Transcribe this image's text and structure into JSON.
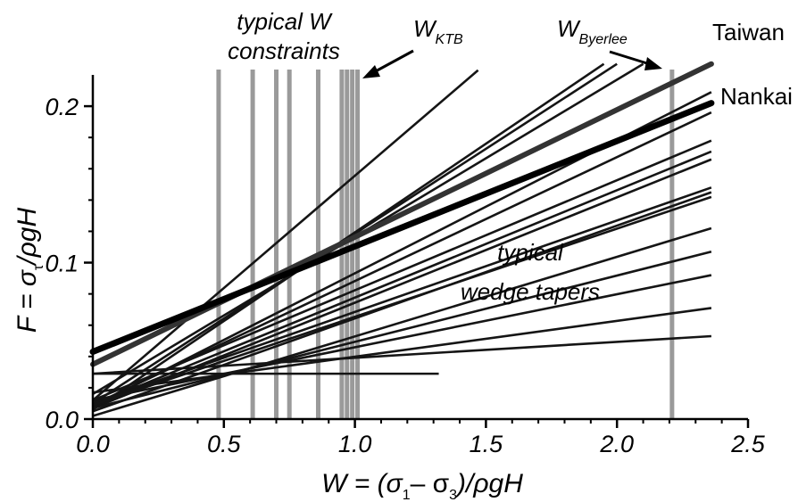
{
  "chart_data": {
    "type": "line",
    "xlim": [
      0,
      2.5
    ],
    "ylim": [
      0,
      0.22
    ],
    "x_ticks": [
      0,
      0.5,
      1,
      1.5,
      2,
      2.5
    ],
    "x_tick_labels": [
      "0.0",
      "0.5",
      "1.0",
      "1.5",
      "2.0",
      "2.5"
    ],
    "y_ticks": [
      0,
      0.1,
      0.2
    ],
    "y_tick_labels": [
      "0.0",
      "0.1",
      "0.2"
    ],
    "xlabel": {
      "prefix": "W = (σ",
      "sub1": "1",
      "mid": "– σ",
      "sub2": "3",
      "suffix": ")/ρgH"
    },
    "ylabel": {
      "prefix": "F = σ",
      "sub": "τ",
      "suffix": "/ρgH"
    },
    "grid": false,
    "constraint_lines": [
      0.48,
      0.61,
      0.7,
      0.75,
      0.86,
      0.95,
      0.97,
      0.99,
      1.01,
      2.21
    ],
    "wedge_lines": [
      [
        0.0,
        0.012,
        1.47,
        0.223
      ],
      [
        0.0,
        0.006,
        1.95,
        0.227
      ],
      [
        0.0,
        0.01,
        2.0,
        0.227
      ],
      [
        0.0,
        0.016,
        2.1,
        0.227
      ],
      [
        0.0,
        0.008,
        2.36,
        0.209
      ],
      [
        0.0,
        0.009,
        2.36,
        0.196
      ],
      [
        0.0,
        0.012,
        2.36,
        0.178
      ],
      [
        0.0,
        0.009,
        2.36,
        0.171
      ],
      [
        0.0,
        0.007,
        2.36,
        0.166
      ],
      [
        0.0,
        0.01,
        2.36,
        0.148
      ],
      [
        0.0,
        0.005,
        2.36,
        0.145
      ],
      [
        0.0,
        0.009,
        2.36,
        0.142
      ],
      [
        0.0,
        0.002,
        2.36,
        0.122
      ],
      [
        0.0,
        0.007,
        2.36,
        0.107
      ],
      [
        0.0,
        0.012,
        2.36,
        0.092
      ],
      [
        0.0,
        0.017,
        2.36,
        0.071
      ],
      [
        0.0,
        0.029,
        2.36,
        0.053
      ],
      [
        0.0,
        0.029,
        1.32,
        0.029
      ]
    ],
    "series": [
      {
        "name": "Taiwan",
        "x": [
          0.0,
          2.36
        ],
        "y": [
          0.035,
          0.227
        ]
      },
      {
        "name": "Nankai",
        "x": [
          0.0,
          2.36
        ],
        "y": [
          0.043,
          0.202
        ]
      }
    ],
    "annotations": {
      "constraints_line1": "typical W",
      "constraints_line2": "constraints",
      "w_ktb": "W",
      "w_ktb_sub": "KTB",
      "w_byerlee": "W",
      "w_byerlee_sub": "Byerlee",
      "tapers_line1": "typical",
      "tapers_line2": "wedge tapers"
    }
  }
}
